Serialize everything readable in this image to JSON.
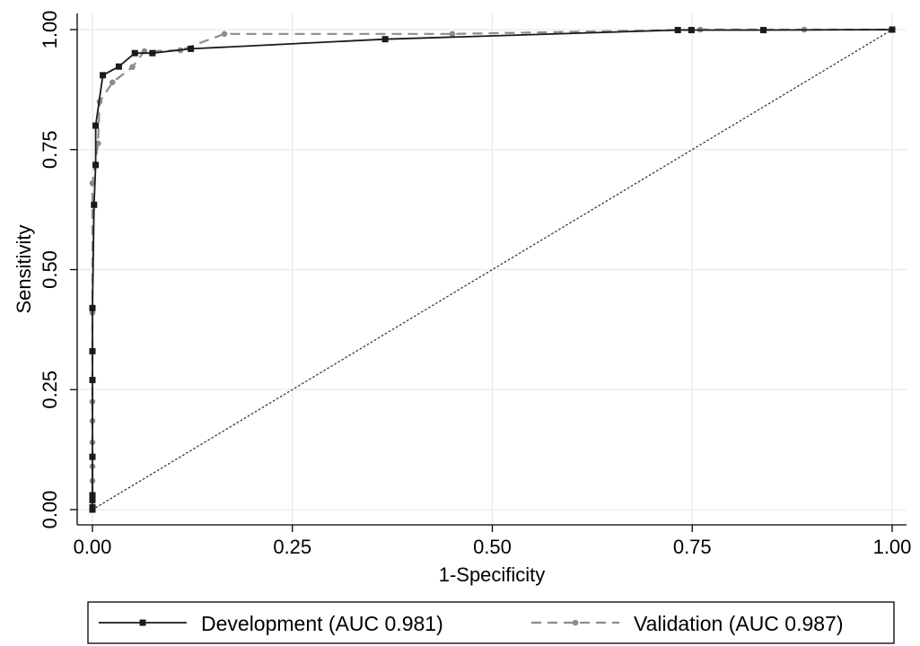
{
  "chart_data": {
    "type": "line",
    "title": "",
    "xlabel": "1-Specificity",
    "ylabel": "Sensitivity",
    "xlim": [
      0,
      1
    ],
    "ylim": [
      0,
      1
    ],
    "x_ticks": [
      "0.00",
      "0.25",
      "0.50",
      "0.75",
      "1.00"
    ],
    "y_ticks": [
      "0.00",
      "0.25",
      "0.50",
      "0.75",
      "1.00"
    ],
    "grid": true,
    "legend_position": "bottom",
    "reference_line": {
      "style": "dotted",
      "from": [
        0,
        0
      ],
      "to": [
        1,
        1
      ]
    },
    "series": [
      {
        "name": "Development (AUC 0.981)",
        "color": "#1a1a1a",
        "line_style": "solid",
        "marker": "square",
        "points": [
          [
            0.0,
            0.0
          ],
          [
            0.0,
            0.005
          ],
          [
            0.0,
            0.02
          ],
          [
            0.0,
            0.03
          ],
          [
            0.0,
            0.11
          ],
          [
            0.0,
            0.27
          ],
          [
            0.0,
            0.33
          ],
          [
            0.0,
            0.42
          ],
          [
            0.002,
            0.635
          ],
          [
            0.004,
            0.718
          ],
          [
            0.004,
            0.8
          ],
          [
            0.013,
            0.905
          ],
          [
            0.033,
            0.923
          ],
          [
            0.053,
            0.951
          ],
          [
            0.075,
            0.951
          ],
          [
            0.123,
            0.96
          ],
          [
            0.366,
            0.98
          ],
          [
            0.732,
            0.999
          ],
          [
            0.749,
            0.999
          ],
          [
            0.839,
            0.999
          ],
          [
            1.0,
            1.0
          ]
        ]
      },
      {
        "name": "Validation (AUC 0.987)",
        "color": "#8c8c8c",
        "line_style": "dashed",
        "marker": "circle",
        "points": [
          [
            0.0,
            0.0
          ],
          [
            0.0,
            0.02
          ],
          [
            0.0,
            0.06
          ],
          [
            0.0,
            0.09
          ],
          [
            0.0,
            0.14
          ],
          [
            0.0,
            0.185
          ],
          [
            0.0,
            0.225
          ],
          [
            0.0,
            0.41
          ],
          [
            0.0,
            0.68
          ],
          [
            0.007,
            0.763
          ],
          [
            0.009,
            0.85
          ],
          [
            0.025,
            0.89
          ],
          [
            0.05,
            0.922
          ],
          [
            0.065,
            0.955
          ],
          [
            0.11,
            0.957
          ],
          [
            0.165,
            0.991
          ],
          [
            0.45,
            0.991
          ],
          [
            0.76,
            1.0
          ],
          [
            0.89,
            1.0
          ],
          [
            1.0,
            1.0
          ]
        ]
      }
    ]
  }
}
